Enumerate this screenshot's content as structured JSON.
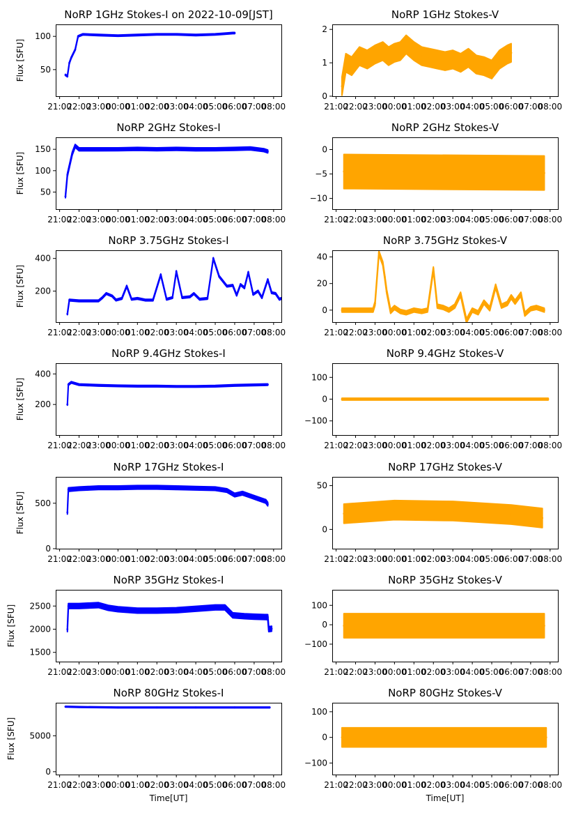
{
  "chart_data": {
    "type": "scatter",
    "layout": "7 rows x 2 columns",
    "xlabel": "Time[UT]",
    "ylabel": "Flux [SFU]",
    "x_tick_labels": [
      "21:00",
      "22:00",
      "23:00",
      "00:00",
      "01:00",
      "02:00",
      "03:00",
      "04:00",
      "05:00",
      "06:00",
      "07:00",
      "08:00"
    ],
    "x_range_hours": [
      -3.2,
      8.4
    ],
    "x_tick_hours": [
      -3,
      -2,
      -1,
      0,
      1,
      2,
      3,
      4,
      5,
      6,
      7,
      8
    ],
    "colors": {
      "stokes_i": "#0000ff",
      "stokes_v": "#ffa500"
    },
    "panels": [
      {
        "id": "1ghz-i",
        "title": "NoRP 1GHz Stokes-I on 2022-10-09[JST]",
        "stokes": "I",
        "ylabel": "Flux [SFU]",
        "ylim": [
          10,
          118
        ],
        "yticks": [
          50,
          100
        ],
        "series": [
          [
            -2.7,
            42
          ],
          [
            -2.6,
            40
          ],
          [
            -2.5,
            60
          ],
          [
            -2.4,
            68
          ],
          [
            -2.2,
            80
          ],
          [
            -2.05,
            100
          ],
          [
            -1.8,
            103
          ],
          [
            -1,
            102
          ],
          [
            0,
            101
          ],
          [
            1,
            102
          ],
          [
            2,
            103
          ],
          [
            3,
            103
          ],
          [
            4,
            102
          ],
          [
            5,
            103
          ],
          [
            5.5,
            104
          ],
          [
            5.9,
            105
          ],
          [
            6.0,
            105
          ]
        ],
        "band": 2
      },
      {
        "id": "1ghz-v",
        "title": "NoRP 1GHz Stokes-V",
        "stokes": "V",
        "ylabel": "",
        "ylim": [
          0,
          2.15
        ],
        "yticks": [
          0,
          1,
          2
        ],
        "series": [
          [
            -2.7,
            0.3
          ],
          [
            -2.5,
            1.0
          ],
          [
            -2.2,
            0.9
          ],
          [
            -1.8,
            1.2
          ],
          [
            -1.4,
            1.1
          ],
          [
            -1.0,
            1.25
          ],
          [
            -0.6,
            1.35
          ],
          [
            -0.3,
            1.2
          ],
          [
            0,
            1.3
          ],
          [
            0.3,
            1.35
          ],
          [
            0.6,
            1.55
          ],
          [
            1,
            1.35
          ],
          [
            1.4,
            1.2
          ],
          [
            1.8,
            1.15
          ],
          [
            2.2,
            1.1
          ],
          [
            2.6,
            1.05
          ],
          [
            3,
            1.1
          ],
          [
            3.4,
            1.0
          ],
          [
            3.8,
            1.15
          ],
          [
            4.2,
            0.95
          ],
          [
            4.6,
            0.9
          ],
          [
            5.0,
            0.8
          ],
          [
            5.4,
            1.1
          ],
          [
            5.8,
            1.25
          ],
          [
            6.0,
            1.3
          ]
        ],
        "band": 0.55
      },
      {
        "id": "2ghz-i",
        "title": "NoRP 2GHz Stokes-I",
        "stokes": "I",
        "ylabel": "Flux [SFU]",
        "ylim": [
          10,
          178
        ],
        "yticks": [
          50,
          100,
          150
        ],
        "series": [
          [
            -2.7,
            40
          ],
          [
            -2.6,
            90
          ],
          [
            -2.5,
            110
          ],
          [
            -2.35,
            140
          ],
          [
            -2.2,
            158
          ],
          [
            -2.0,
            150
          ],
          [
            -1,
            150
          ],
          [
            0,
            150
          ],
          [
            1,
            151
          ],
          [
            2,
            150
          ],
          [
            3,
            151
          ],
          [
            4,
            150
          ],
          [
            5,
            150
          ],
          [
            6,
            151
          ],
          [
            6.8,
            152
          ],
          [
            7.5,
            148
          ],
          [
            7.7,
            145
          ]
        ],
        "band": 7
      },
      {
        "id": "2ghz-v",
        "title": "NoRP 2GHz Stokes-V",
        "stokes": "V",
        "ylabel": "",
        "ylim": [
          -12.2,
          2.5
        ],
        "yticks": [
          -10,
          -5,
          0
        ],
        "series": [
          [
            -2.6,
            -4.5
          ],
          [
            7.7,
            -4.8
          ]
        ],
        "band": 7
      },
      {
        "id": "3-75ghz-i",
        "title": "NoRP 3.75GHz Stokes-I",
        "stokes": "I",
        "ylabel": "Flux [SFU]",
        "ylim": [
          10,
          450
        ],
        "yticks": [
          200,
          400
        ],
        "series": [
          [
            -2.6,
            60
          ],
          [
            -2.5,
            145
          ],
          [
            -2,
            140
          ],
          [
            -1,
            140
          ],
          [
            -0.8,
            160
          ],
          [
            -0.6,
            185
          ],
          [
            -0.3,
            170
          ],
          [
            -0.1,
            145
          ],
          [
            0.2,
            155
          ],
          [
            0.45,
            230
          ],
          [
            0.7,
            150
          ],
          [
            1,
            155
          ],
          [
            1.4,
            145
          ],
          [
            1.8,
            145
          ],
          [
            2.2,
            300
          ],
          [
            2.5,
            150
          ],
          [
            2.8,
            160
          ],
          [
            3.0,
            320
          ],
          [
            3.3,
            160
          ],
          [
            3.7,
            165
          ],
          [
            3.9,
            185
          ],
          [
            4.2,
            150
          ],
          [
            4.6,
            155
          ],
          [
            4.9,
            400
          ],
          [
            5.2,
            290
          ],
          [
            5.6,
            230
          ],
          [
            5.9,
            235
          ],
          [
            6.1,
            175
          ],
          [
            6.3,
            240
          ],
          [
            6.5,
            220
          ],
          [
            6.7,
            315
          ],
          [
            6.95,
            180
          ],
          [
            7.2,
            200
          ],
          [
            7.4,
            160
          ],
          [
            7.7,
            270
          ],
          [
            7.9,
            190
          ],
          [
            8.1,
            185
          ],
          [
            8.3,
            150
          ],
          [
            8.6,
            165
          ],
          [
            9,
            160
          ],
          [
            9.4,
            150
          ],
          [
            9.5,
            145
          ]
        ],
        "band": 10
      },
      {
        "id": "3-75ghz-v",
        "title": "NoRP 3.75GHz Stokes-V",
        "stokes": "V",
        "ylabel": "",
        "ylim": [
          -9,
          45
        ],
        "yticks": [
          0,
          20,
          40
        ],
        "series": [
          [
            -2.7,
            0
          ],
          [
            -2,
            0
          ],
          [
            -1.1,
            0
          ],
          [
            -1.0,
            5
          ],
          [
            -0.8,
            43
          ],
          [
            -0.6,
            35
          ],
          [
            -0.5,
            25
          ],
          [
            -0.4,
            14
          ],
          [
            -0.2,
            -1
          ],
          [
            0,
            2
          ],
          [
            0.3,
            -1
          ],
          [
            0.6,
            -2
          ],
          [
            1,
            0
          ],
          [
            1.4,
            -1
          ],
          [
            1.7,
            0
          ],
          [
            2.0,
            31
          ],
          [
            2.2,
            3
          ],
          [
            2.5,
            2
          ],
          [
            2.8,
            0
          ],
          [
            3.1,
            3
          ],
          [
            3.4,
            12
          ],
          [
            3.7,
            -8
          ],
          [
            4.0,
            0
          ],
          [
            4.3,
            -2
          ],
          [
            4.6,
            6
          ],
          [
            4.9,
            1
          ],
          [
            5.2,
            18
          ],
          [
            5.5,
            3
          ],
          [
            5.8,
            5
          ],
          [
            6.0,
            10
          ],
          [
            6.2,
            6
          ],
          [
            6.5,
            12
          ],
          [
            6.7,
            -3
          ],
          [
            7.0,
            1
          ],
          [
            7.3,
            2
          ],
          [
            7.7,
            0
          ]
        ],
        "band": 3
      },
      {
        "id": "9-4ghz-i",
        "title": "NoRP 9.4GHz Stokes-I",
        "stokes": "I",
        "ylabel": "Flux [SFU]",
        "ylim": [
          0,
          470
        ],
        "yticks": [
          200,
          400
        ],
        "series": [
          [
            -2.6,
            200
          ],
          [
            -2.55,
            330
          ],
          [
            -2.4,
            345
          ],
          [
            -2,
            330
          ],
          [
            -1,
            325
          ],
          [
            0,
            322
          ],
          [
            1,
            320
          ],
          [
            2,
            320
          ],
          [
            3,
            318
          ],
          [
            4,
            318
          ],
          [
            5,
            320
          ],
          [
            6,
            325
          ],
          [
            7,
            328
          ],
          [
            7.7,
            330
          ]
        ],
        "band": 10
      },
      {
        "id": "9-4ghz-v",
        "title": "NoRP 9.4GHz Stokes-V",
        "stokes": "V",
        "ylabel": "",
        "ylim": [
          -165,
          165
        ],
        "yticks": [
          -100,
          0,
          100
        ],
        "series": [
          [
            -2.7,
            0
          ],
          [
            7.9,
            0
          ]
        ],
        "band": 9
      },
      {
        "id": "17ghz-i",
        "title": "NoRP 17GHz Stokes-I",
        "stokes": "I",
        "ylabel": "Flux [SFU]",
        "ylim": [
          0,
          790
        ],
        "yticks": [
          0,
          500
        ],
        "series": [
          [
            -2.6,
            400
          ],
          [
            -2.55,
            650
          ],
          [
            -2,
            660
          ],
          [
            -1,
            670
          ],
          [
            0,
            670
          ],
          [
            1,
            675
          ],
          [
            2,
            675
          ],
          [
            3,
            670
          ],
          [
            4,
            665
          ],
          [
            5,
            660
          ],
          [
            5.6,
            640
          ],
          [
            6.0,
            590
          ],
          [
            6.4,
            610
          ],
          [
            6.8,
            580
          ],
          [
            7.2,
            550
          ],
          [
            7.6,
            520
          ],
          [
            7.7,
            490
          ]
        ],
        "band": 40
      },
      {
        "id": "17ghz-v",
        "title": "NoRP 17GHz Stokes-V",
        "stokes": "V",
        "ylabel": "",
        "ylim": [
          -22,
          60
        ],
        "yticks": [
          0,
          50
        ],
        "series": [
          [
            -2.6,
            18
          ],
          [
            0,
            22
          ],
          [
            3,
            21
          ],
          [
            6,
            17
          ],
          [
            7.6,
            13
          ]
        ],
        "band": 22
      },
      {
        "id": "35ghz-i",
        "title": "NoRP 35GHz Stokes-I",
        "stokes": "I",
        "ylabel": "Flux [SFU]",
        "ylim": [
          1300,
          2850
        ],
        "yticks": [
          1500,
          2000,
          2500
        ],
        "series": [
          [
            -2.6,
            2000
          ],
          [
            -2.55,
            2500
          ],
          [
            -2,
            2500
          ],
          [
            -1,
            2520
          ],
          [
            -0.5,
            2460
          ],
          [
            0,
            2430
          ],
          [
            1,
            2400
          ],
          [
            2,
            2400
          ],
          [
            3,
            2410
          ],
          [
            4,
            2440
          ],
          [
            5,
            2470
          ],
          [
            5.5,
            2470
          ],
          [
            5.9,
            2300
          ],
          [
            6.5,
            2280
          ],
          [
            7,
            2270
          ],
          [
            7.7,
            2260
          ],
          [
            7.75,
            2000
          ],
          [
            7.9,
            2010
          ]
        ],
        "band": 110
      },
      {
        "id": "35ghz-v",
        "title": "NoRP 35GHz Stokes-V",
        "stokes": "V",
        "ylabel": "",
        "ylim": [
          -190,
          180
        ],
        "yticks": [
          -100,
          0,
          100
        ],
        "series": [
          [
            -2.6,
            -5
          ],
          [
            7.7,
            -5
          ]
        ],
        "band": 125
      },
      {
        "id": "80ghz-i",
        "title": "NoRP 80GHz Stokes-I",
        "stokes": "I",
        "ylabel": "Flux [SFU]",
        "ylim": [
          -400,
          9600
        ],
        "yticks": [
          0,
          5000
        ],
        "series": [
          [
            -2.7,
            9050
          ],
          [
            -2,
            9000
          ],
          [
            0,
            8950
          ],
          [
            2,
            8950
          ],
          [
            4,
            8950
          ],
          [
            6,
            8950
          ],
          [
            7.8,
            8950
          ]
        ],
        "band": 120
      },
      {
        "id": "80ghz-v",
        "title": "NoRP 80GHz Stokes-V",
        "stokes": "V",
        "ylabel": "",
        "ylim": [
          -145,
          135
        ],
        "yticks": [
          -100,
          0,
          100
        ],
        "series": [
          [
            -2.7,
            0
          ],
          [
            7.8,
            0
          ]
        ],
        "band": 75
      }
    ]
  }
}
